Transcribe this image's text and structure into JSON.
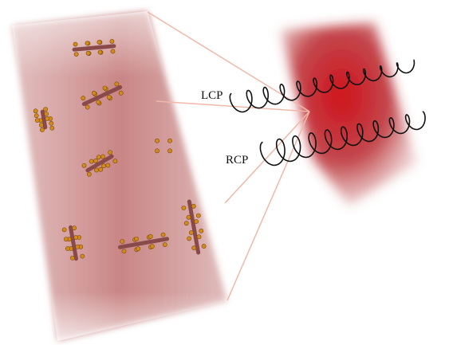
{
  "labels": [
    "LCP",
    "RCP"
  ]
}
